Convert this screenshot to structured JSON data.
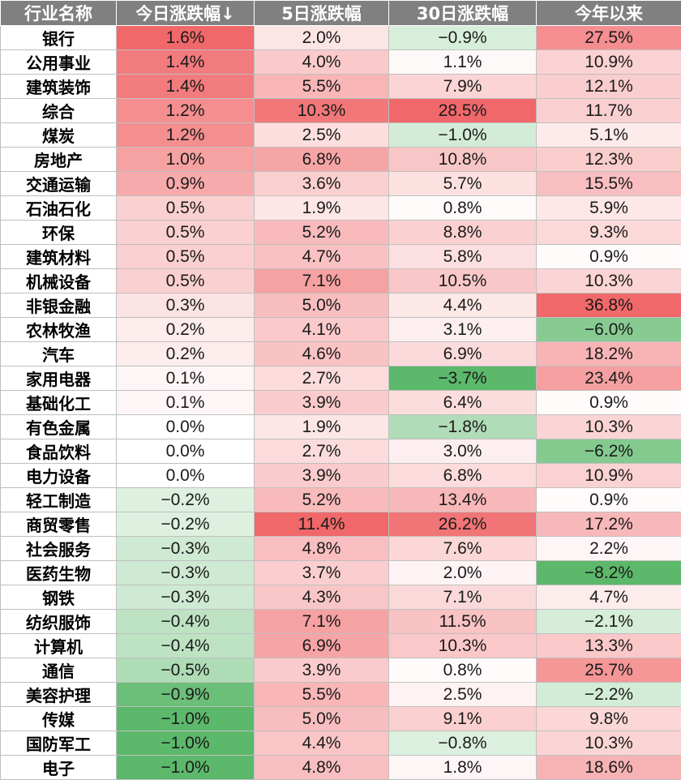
{
  "colors": {
    "header_bg": "#808080",
    "positive_max": "#f0686a",
    "negative_max": "#5cb86a",
    "neutral": "#ffffff"
  },
  "table": {
    "headers": [
      "行业名称",
      "今日涨跌幅↓",
      "5日涨跌幅",
      "30日涨跌幅",
      "今年以来"
    ],
    "rows": [
      [
        "银行",
        "1.6%",
        "2.0%",
        "−0.9%",
        "27.5%"
      ],
      [
        "公用事业",
        "1.4%",
        "4.0%",
        "1.1%",
        "10.9%"
      ],
      [
        "建筑装饰",
        "1.4%",
        "5.5%",
        "7.9%",
        "12.1%"
      ],
      [
        "综合",
        "1.2%",
        "10.3%",
        "28.5%",
        "11.7%"
      ],
      [
        "煤炭",
        "1.2%",
        "2.5%",
        "−1.0%",
        "5.1%"
      ],
      [
        "房地产",
        "1.0%",
        "6.8%",
        "10.8%",
        "12.3%"
      ],
      [
        "交通运输",
        "0.9%",
        "3.6%",
        "5.7%",
        "15.5%"
      ],
      [
        "石油石化",
        "0.5%",
        "1.9%",
        "0.8%",
        "5.9%"
      ],
      [
        "环保",
        "0.5%",
        "5.2%",
        "8.8%",
        "9.3%"
      ],
      [
        "建筑材料",
        "0.5%",
        "4.7%",
        "5.8%",
        "0.9%"
      ],
      [
        "机械设备",
        "0.5%",
        "7.1%",
        "10.5%",
        "10.3%"
      ],
      [
        "非银金融",
        "0.3%",
        "5.0%",
        "4.4%",
        "36.8%"
      ],
      [
        "农林牧渔",
        "0.2%",
        "4.1%",
        "3.1%",
        "−6.0%"
      ],
      [
        "汽车",
        "0.2%",
        "4.6%",
        "6.9%",
        "18.2%"
      ],
      [
        "家用电器",
        "0.1%",
        "2.7%",
        "−3.7%",
        "23.4%"
      ],
      [
        "基础化工",
        "0.1%",
        "3.9%",
        "6.4%",
        "0.9%"
      ],
      [
        "有色金属",
        "0.0%",
        "1.9%",
        "−1.8%",
        "10.3%"
      ],
      [
        "食品饮料",
        "0.0%",
        "2.7%",
        "3.0%",
        "−6.2%"
      ],
      [
        "电力设备",
        "0.0%",
        "3.9%",
        "6.8%",
        "10.9%"
      ],
      [
        "轻工制造",
        "−0.2%",
        "5.2%",
        "13.4%",
        "0.9%"
      ],
      [
        "商贸零售",
        "−0.2%",
        "11.4%",
        "26.2%",
        "17.2%"
      ],
      [
        "社会服务",
        "−0.3%",
        "4.8%",
        "7.6%",
        "2.2%"
      ],
      [
        "医药生物",
        "−0.3%",
        "3.7%",
        "2.0%",
        "−8.2%"
      ],
      [
        "钢铁",
        "−0.3%",
        "4.3%",
        "7.1%",
        "4.7%"
      ],
      [
        "纺织服饰",
        "−0.4%",
        "7.1%",
        "11.5%",
        "−2.1%"
      ],
      [
        "计算机",
        "−0.4%",
        "6.9%",
        "10.3%",
        "13.3%"
      ],
      [
        "通信",
        "−0.5%",
        "3.9%",
        "0.8%",
        "25.7%"
      ],
      [
        "美容护理",
        "−0.9%",
        "5.5%",
        "2.5%",
        "−2.2%"
      ],
      [
        "传媒",
        "−1.0%",
        "5.0%",
        "9.1%",
        "9.8%"
      ],
      [
        "国防军工",
        "−1.0%",
        "4.4%",
        "−0.8%",
        "10.3%"
      ],
      [
        "电子",
        "−1.0%",
        "4.8%",
        "1.8%",
        "18.6%"
      ]
    ]
  }
}
